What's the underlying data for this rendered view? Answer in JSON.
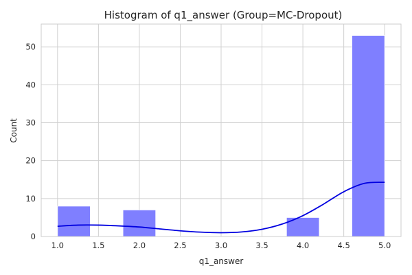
{
  "chart_data": {
    "type": "bar",
    "title": "Histogram of q1_answer (Group=MC-Dropout)",
    "xlabel": "q1_answer",
    "ylabel": "Count",
    "xlim": [
      0.8,
      5.2
    ],
    "ylim": [
      0,
      56
    ],
    "xticks": [
      1.0,
      1.5,
      2.0,
      2.5,
      3.0,
      3.5,
      4.0,
      4.5,
      5.0
    ],
    "yticks": [
      0,
      10,
      20,
      30,
      40,
      50
    ],
    "grid": true,
    "bins": [
      {
        "x0": 1.0,
        "x1": 1.4,
        "count": 8
      },
      {
        "x0": 1.8,
        "x1": 2.2,
        "count": 7
      },
      {
        "x0": 3.8,
        "x1": 4.2,
        "count": 5
      },
      {
        "x0": 4.6,
        "x1": 5.0,
        "count": 53
      }
    ],
    "bar_color": "#7f7fff",
    "kde": {
      "color": "#0000e0",
      "x": [
        1.0,
        1.25,
        1.5,
        1.75,
        2.0,
        2.25,
        2.5,
        2.75,
        3.0,
        3.25,
        3.5,
        3.75,
        4.0,
        4.25,
        4.5,
        4.75,
        5.0
      ],
      "y": [
        2.7,
        3.0,
        3.0,
        2.8,
        2.5,
        2.0,
        1.5,
        1.15,
        1.0,
        1.2,
        1.9,
        3.3,
        5.5,
        8.5,
        11.8,
        14.0,
        14.3
      ]
    }
  }
}
